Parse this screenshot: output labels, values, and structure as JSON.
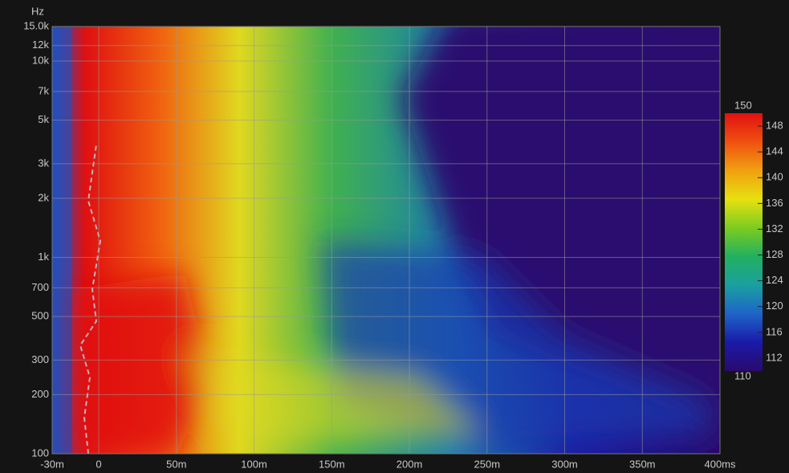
{
  "chart_data": {
    "type": "spectrogram",
    "ylabel": "Hz",
    "log_y": true,
    "grid": true,
    "xlim": [
      -30,
      400
    ],
    "ylim": [
      100,
      15000
    ],
    "xticks": [
      {
        "value": -30,
        "label": "-30m"
      },
      0,
      {
        "value": 50,
        "label": "50m"
      },
      {
        "value": 100,
        "label": "100m"
      },
      {
        "value": 150,
        "label": "150m"
      },
      {
        "value": 200,
        "label": "200m"
      },
      {
        "value": 250,
        "label": "250m"
      },
      {
        "value": 300,
        "label": "300m"
      },
      {
        "value": 350,
        "label": "350m"
      },
      {
        "value": 400,
        "label": "400ms"
      }
    ],
    "yticks": [
      100,
      200,
      300,
      500,
      700,
      {
        "value": 1000,
        "label": "1k"
      },
      {
        "value": 2000,
        "label": "2k"
      },
      {
        "value": 3000,
        "label": "3k"
      },
      {
        "value": 5000,
        "label": "5k"
      },
      {
        "value": 7000,
        "label": "7k"
      },
      {
        "value": 10000,
        "label": "10k"
      },
      {
        "value": 12000,
        "label": "12k"
      },
      {
        "value": 15000,
        "label": "15.0k"
      }
    ],
    "colorbar": {
      "lim": [
        110,
        150
      ],
      "ticks": [
        112,
        116,
        120,
        124,
        128,
        132,
        136,
        140,
        144,
        148
      ],
      "colormap": [
        "#2a0a6e",
        "#1a1aa8",
        "#1e64c8",
        "#1aa0a0",
        "#22b060",
        "#7ccc20",
        "#e8e010",
        "#f0a010",
        "#f05010",
        "#e01010"
      ]
    }
  }
}
